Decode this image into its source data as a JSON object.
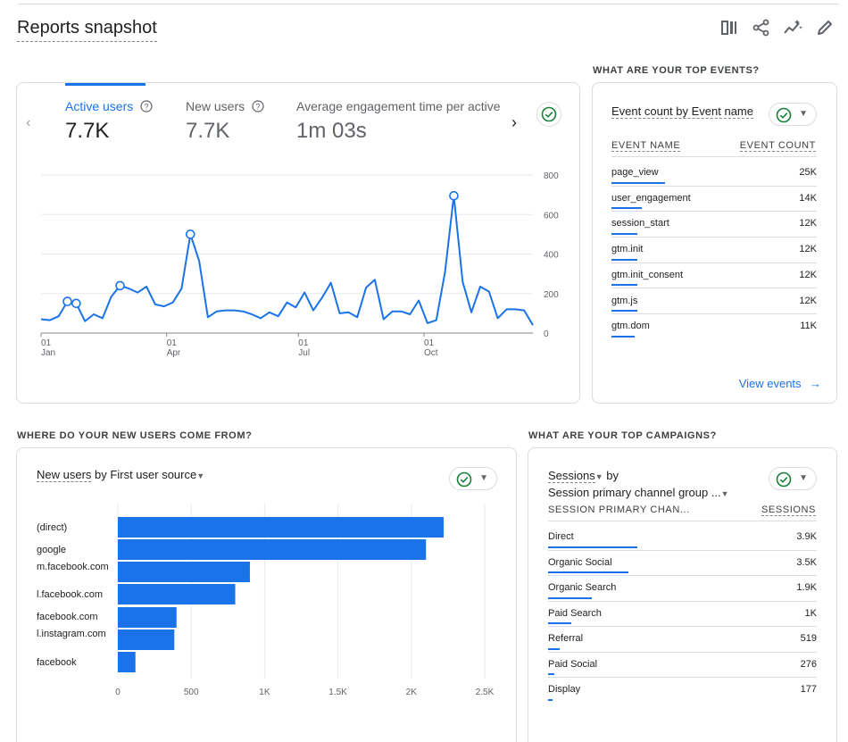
{
  "header": {
    "title": "Reports snapshot",
    "icons": [
      "compare-icon",
      "share-icon",
      "insights-icon",
      "edit-icon"
    ]
  },
  "overview": {
    "metrics": [
      {
        "label": "Active users",
        "value": "7.7K",
        "has_help": true,
        "active": true
      },
      {
        "label": "New users",
        "value": "7.7K",
        "has_help": true,
        "active": false
      },
      {
        "label": "Average engagement time per active us",
        "value": "1m 03s",
        "has_help": false,
        "active": false
      }
    ],
    "chart_data": {
      "type": "line",
      "x_ticks": [
        {
          "day": "01",
          "month": "Jan"
        },
        {
          "day": "01",
          "month": "Apr"
        },
        {
          "day": "01",
          "month": "Jul"
        },
        {
          "day": "01",
          "month": "Oct"
        }
      ],
      "y_ticks": [
        "800",
        "600",
        "400",
        "200",
        "0"
      ],
      "ylim": [
        0,
        800
      ],
      "values": [
        70,
        65,
        85,
        160,
        150,
        60,
        95,
        75,
        185,
        240,
        225,
        205,
        235,
        145,
        135,
        155,
        225,
        500,
        365,
        80,
        110,
        115,
        115,
        110,
        95,
        75,
        105,
        85,
        155,
        130,
        205,
        115,
        180,
        255,
        100,
        105,
        80,
        230,
        270,
        70,
        110,
        110,
        95,
        165,
        50,
        65,
        310,
        695,
        260,
        105,
        235,
        210,
        75,
        120,
        120,
        115,
        40
      ],
      "highlight_indices": [
        3,
        4,
        9,
        17,
        47
      ]
    }
  },
  "events": {
    "section_title": "WHAT ARE YOUR TOP EVENTS?",
    "card_title": "Event count by Event name",
    "col_name": "EVENT NAME",
    "col_value": "EVENT COUNT",
    "rows": [
      {
        "name": "page_view",
        "value": "25K",
        "share": 1.0
      },
      {
        "name": "user_engagement",
        "value": "14K",
        "share": 0.56
      },
      {
        "name": "session_start",
        "value": "12K",
        "share": 0.48
      },
      {
        "name": "gtm.init",
        "value": "12K",
        "share": 0.48
      },
      {
        "name": "gtm.init_consent",
        "value": "12K",
        "share": 0.48
      },
      {
        "name": "gtm.js",
        "value": "12K",
        "share": 0.48
      },
      {
        "name": "gtm.dom",
        "value": "11K",
        "share": 0.44
      }
    ],
    "link": "View events"
  },
  "sources": {
    "section_title": "WHERE DO YOUR NEW USERS COME FROM?",
    "card_title_metric": "New users",
    "card_title_by": "by",
    "card_title_dim": "First user source",
    "chart_data": {
      "type": "bar",
      "orientation": "horizontal",
      "categories": [
        "(direct)",
        "google",
        "m.facebook.com",
        "l.facebook.com",
        "facebook.com",
        "l.instagram.com",
        "facebook"
      ],
      "values": [
        2220,
        2100,
        900,
        800,
        400,
        385,
        120
      ],
      "x_ticks": [
        "0",
        "500",
        "1K",
        "1.5K",
        "2K",
        "2.5K"
      ],
      "xlim": [
        0,
        2500
      ]
    }
  },
  "campaigns": {
    "section_title": "WHAT ARE YOUR TOP CAMPAIGNS?",
    "card_title_metric": "Sessions",
    "card_title_by": "by",
    "card_title_dim": "Session primary channel group ...",
    "col_name": "SESSION PRIMARY CHAN...",
    "col_value": "SESSIONS",
    "rows": [
      {
        "name": "Direct",
        "value": "3.9K",
        "share": 1.0
      },
      {
        "name": "Organic Social",
        "value": "3.5K",
        "share": 0.9
      },
      {
        "name": "Organic Search",
        "value": "1.9K",
        "share": 0.49
      },
      {
        "name": "Paid Search",
        "value": "1K",
        "share": 0.26
      },
      {
        "name": "Referral",
        "value": "519",
        "share": 0.13
      },
      {
        "name": "Paid Social",
        "value": "276",
        "share": 0.07
      },
      {
        "name": "Display",
        "value": "177",
        "share": 0.045
      }
    ]
  },
  "colors": {
    "accent": "#1a73e8",
    "success": "#188038",
    "border": "#dadce0"
  }
}
